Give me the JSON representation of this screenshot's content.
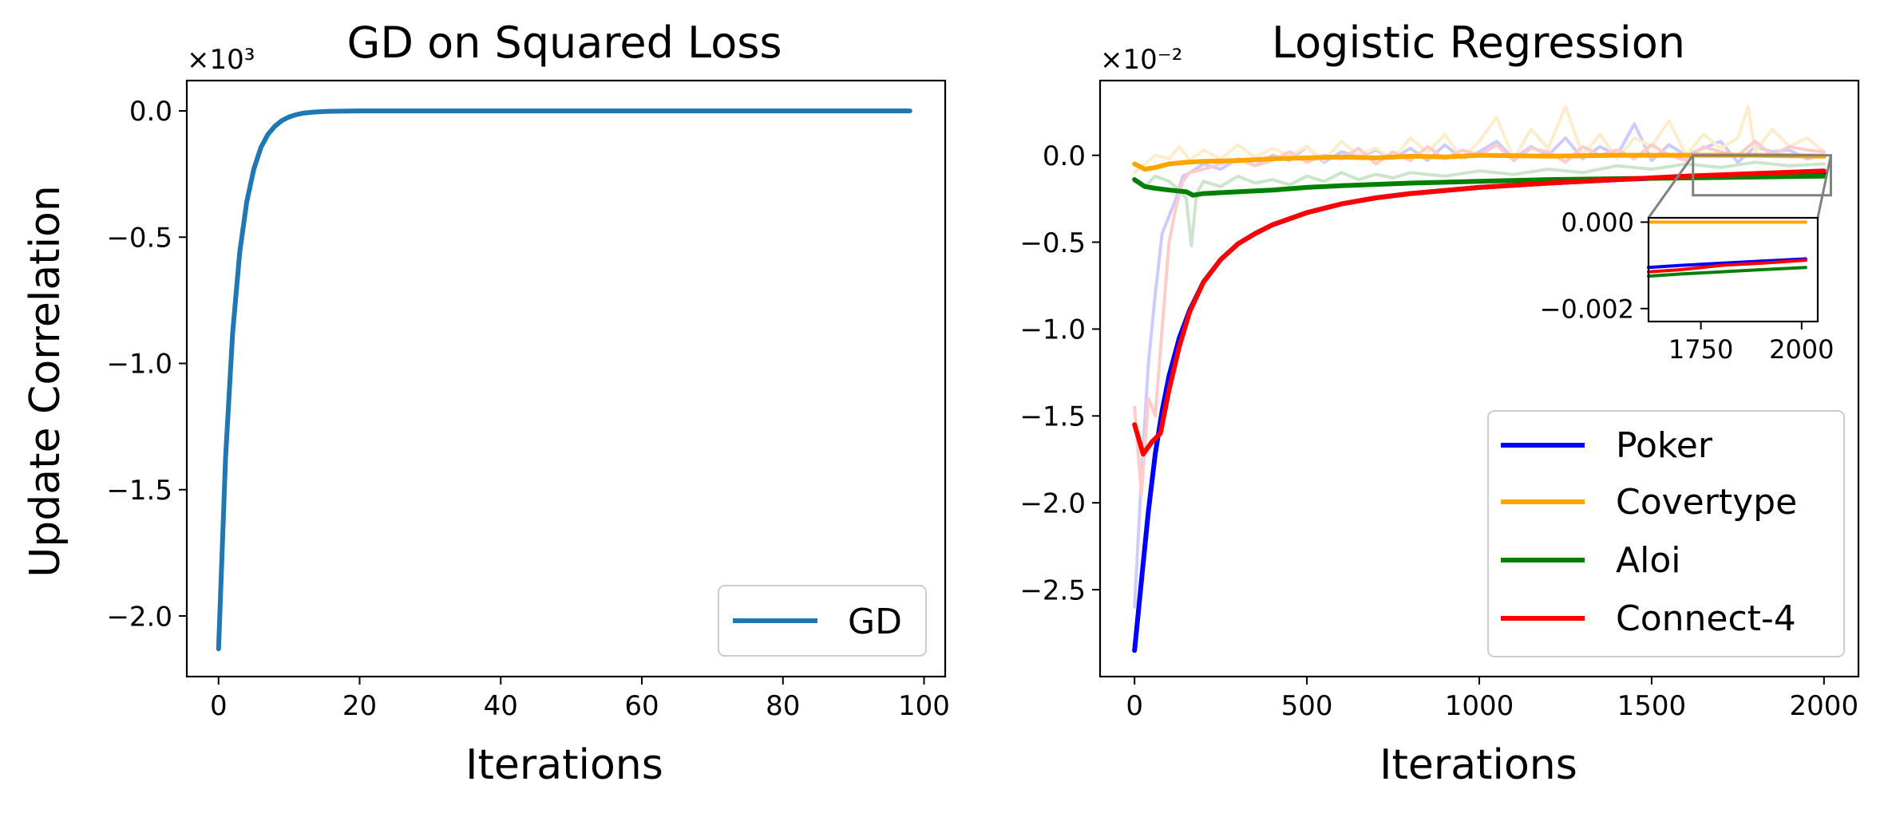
{
  "chart_data": [
    {
      "type": "line",
      "title": "GD on Squared Loss",
      "xlabel": "Iterations",
      "ylabel": "Update Correlation",
      "multiplier_label": "×10³",
      "xlim": [
        -4.5,
        103
      ],
      "ylim": [
        -2.24,
        0.12
      ],
      "xticks": [
        0,
        20,
        40,
        60,
        80,
        100
      ],
      "xtick_labels": [
        "0",
        "20",
        "40",
        "60",
        "80",
        "100"
      ],
      "yticks": [
        0.0,
        -0.5,
        -1.0,
        -1.5,
        -2.0
      ],
      "ytick_labels": [
        "0.0",
        "−0.5",
        "−1.0",
        "−1.5",
        "−2.0"
      ],
      "legend_position": "lower right",
      "series": [
        {
          "name": "GD",
          "color": "#1f77b4",
          "x": [
            0,
            1,
            2,
            3,
            4,
            5,
            6,
            7,
            8,
            9,
            10,
            11,
            12,
            13,
            14,
            15,
            16,
            18,
            20,
            25,
            30,
            40,
            50,
            60,
            70,
            80,
            90,
            98
          ],
          "y": [
            -2.13,
            -1.37,
            -0.88,
            -0.56,
            -0.36,
            -0.23,
            -0.145,
            -0.093,
            -0.06,
            -0.038,
            -0.024,
            -0.015,
            -0.009,
            -0.006,
            -0.004,
            -0.0025,
            -0.0015,
            -0.0006,
            -0.0002,
            0,
            0,
            0,
            0,
            0,
            0,
            0,
            0,
            0
          ]
        }
      ]
    },
    {
      "type": "line",
      "title": "Logistic Regression",
      "xlabel": "Iterations",
      "ylabel": "",
      "multiplier_label": "×10⁻²",
      "xlim": [
        -100,
        2100
      ],
      "ylim": [
        -3.0,
        0.43
      ],
      "xticks": [
        0,
        500,
        1000,
        1500,
        2000
      ],
      "xtick_labels": [
        "0",
        "500",
        "1000",
        "1500",
        "2000"
      ],
      "yticks": [
        0.0,
        -0.5,
        -1.0,
        -1.5,
        -2.0,
        -2.5
      ],
      "ytick_labels": [
        "0.0",
        "−0.5",
        "−1.0",
        "−1.5",
        "−2.0",
        "−2.5"
      ],
      "legend_position": "lower right",
      "series": [
        {
          "name": "Poker",
          "color": "#0000ff",
          "x": [
            0,
            20,
            40,
            60,
            80,
            100,
            130,
            160,
            200,
            250,
            300,
            350,
            400,
            500,
            600,
            700,
            800,
            1000,
            1200,
            1400,
            1600,
            1800,
            2000
          ],
          "y": [
            -2.85,
            -2.45,
            -2.05,
            -1.72,
            -1.47,
            -1.27,
            -1.05,
            -0.89,
            -0.73,
            -0.6,
            -0.51,
            -0.45,
            -0.4,
            -0.33,
            -0.28,
            -0.245,
            -0.22,
            -0.185,
            -0.16,
            -0.14,
            -0.125,
            -0.11,
            -0.1
          ]
        },
        {
          "name": "Covertype",
          "color": "#ffa500",
          "x": [
            0,
            30,
            60,
            100,
            150,
            200,
            300,
            400,
            500,
            600,
            700,
            800,
            900,
            1000,
            1200,
            1400,
            1600,
            1800,
            2000
          ],
          "y": [
            -0.05,
            -0.08,
            -0.07,
            -0.05,
            -0.04,
            -0.035,
            -0.03,
            -0.02,
            -0.015,
            -0.01,
            -0.015,
            -0.005,
            -0.01,
            0.0,
            -0.005,
            0.0,
            0.0,
            0.0,
            -0.005
          ]
        },
        {
          "name": "Aloi",
          "color": "#008000",
          "x": [
            0,
            30,
            60,
            100,
            150,
            170,
            200,
            300,
            400,
            500,
            600,
            800,
            1000,
            1200,
            1400,
            1600,
            1800,
            2000
          ],
          "y": [
            -0.14,
            -0.18,
            -0.19,
            -0.2,
            -0.21,
            -0.23,
            -0.22,
            -0.21,
            -0.2,
            -0.185,
            -0.175,
            -0.16,
            -0.15,
            -0.14,
            -0.135,
            -0.13,
            -0.125,
            -0.12
          ]
        },
        {
          "name": "Connect-4",
          "color": "#ff0000",
          "x": [
            0,
            25,
            50,
            75,
            100,
            130,
            160,
            200,
            250,
            300,
            350,
            400,
            500,
            600,
            700,
            800,
            1000,
            1200,
            1400,
            1600,
            1800,
            2000
          ],
          "y": [
            -1.55,
            -1.72,
            -1.65,
            -1.6,
            -1.35,
            -1.1,
            -0.9,
            -0.73,
            -0.6,
            -0.51,
            -0.45,
            -0.4,
            -0.33,
            -0.28,
            -0.245,
            -0.22,
            -0.185,
            -0.16,
            -0.14,
            -0.12,
            -0.105,
            -0.09
          ]
        }
      ],
      "raw_series": [
        {
          "name": "Poker",
          "color": "#0000ff",
          "x": [
            0,
            20,
            40,
            60,
            80,
            100,
            120,
            140,
            160,
            200,
            250,
            300,
            350,
            400,
            450,
            500,
            550,
            600,
            650,
            700,
            750,
            800,
            850,
            900,
            950,
            1000,
            1050,
            1100,
            1150,
            1200,
            1250,
            1300,
            1350,
            1400,
            1450,
            1500,
            1550,
            1600,
            1650,
            1700,
            1750,
            1800,
            1850,
            1900,
            1950,
            2000
          ],
          "y": [
            -2.6,
            -1.85,
            -1.2,
            -0.8,
            -0.45,
            -0.35,
            -0.25,
            -0.12,
            -0.1,
            -0.05,
            -0.08,
            -0.02,
            -0.06,
            0.0,
            -0.03,
            0.05,
            -0.04,
            0.02,
            -0.01,
            0.03,
            -0.02,
            0.04,
            -0.03,
            0.06,
            -0.02,
            0.02,
            0.08,
            -0.02,
            0.05,
            0.0,
            0.1,
            -0.02,
            0.05,
            0.0,
            0.18,
            -0.03,
            0.06,
            0.0,
            0.04,
            0.08,
            -0.04,
            0.05,
            0.02,
            0.03,
            -0.02,
            0.0
          ]
        },
        {
          "name": "Covertype",
          "color": "#ffa500",
          "x": [
            0,
            30,
            60,
            100,
            130,
            160,
            200,
            250,
            300,
            350,
            400,
            450,
            500,
            550,
            600,
            650,
            700,
            750,
            800,
            850,
            900,
            950,
            1000,
            1050,
            1100,
            1150,
            1200,
            1250,
            1300,
            1350,
            1400,
            1450,
            1500,
            1550,
            1600,
            1650,
            1700,
            1750,
            1780,
            1800,
            1850,
            1900,
            1950,
            2000
          ],
          "y": [
            -0.1,
            -0.05,
            0.0,
            -0.02,
            0.05,
            -0.03,
            0.03,
            -0.02,
            0.06,
            -0.01,
            0.04,
            0.0,
            0.05,
            -0.03,
            0.08,
            0.0,
            0.04,
            -0.02,
            0.1,
            0.02,
            0.12,
            -0.02,
            0.08,
            0.22,
            -0.02,
            0.15,
            0.04,
            0.28,
            0.0,
            0.12,
            -0.02,
            0.1,
            0.05,
            0.2,
            0.0,
            0.12,
            0.04,
            0.1,
            0.28,
            0.02,
            0.15,
            0.05,
            0.1,
            0.02
          ]
        },
        {
          "name": "Aloi",
          "color": "#008000",
          "x": [
            0,
            30,
            60,
            100,
            130,
            150,
            165,
            180,
            200,
            250,
            300,
            350,
            400,
            450,
            500,
            550,
            600,
            650,
            700,
            750,
            800,
            900,
            1000,
            1100,
            1200,
            1300,
            1400,
            1500,
            1600,
            1700,
            1800,
            1900,
            2000
          ],
          "y": [
            -0.15,
            -0.18,
            -0.12,
            -0.15,
            -0.2,
            -0.25,
            -0.52,
            -0.22,
            -0.15,
            -0.18,
            -0.12,
            -0.16,
            -0.14,
            -0.17,
            -0.12,
            -0.15,
            -0.1,
            -0.14,
            -0.11,
            -0.13,
            -0.1,
            -0.12,
            -0.09,
            -0.11,
            -0.08,
            -0.1,
            -0.06,
            -0.08,
            -0.05,
            -0.07,
            -0.04,
            -0.06,
            -0.05
          ]
        },
        {
          "name": "Connect-4",
          "color": "#ff0000",
          "x": [
            0,
            20,
            40,
            60,
            80,
            100,
            120,
            140,
            160,
            200,
            250,
            300,
            350,
            400,
            450,
            500,
            550,
            600,
            650,
            700,
            750,
            800,
            850,
            900,
            950,
            1000,
            1050,
            1100,
            1150,
            1200,
            1250,
            1300,
            1350,
            1400,
            1450,
            1500,
            1550,
            1600,
            1650,
            1700,
            1750,
            1800,
            1850,
            1900,
            1950,
            2000
          ],
          "y": [
            -1.45,
            -1.95,
            -1.4,
            -1.5,
            -1.0,
            -0.5,
            -0.3,
            -0.15,
            -0.1,
            -0.08,
            -0.05,
            -0.02,
            -0.06,
            -0.03,
            0.02,
            -0.04,
            0.0,
            -0.02,
            0.04,
            -0.05,
            0.02,
            -0.03,
            0.05,
            -0.02,
            0.03,
            0.0,
            0.06,
            -0.03,
            0.04,
            0.02,
            -0.04,
            0.05,
            0.0,
            0.03,
            -0.02,
            0.06,
            0.0,
            -0.03,
            0.05,
            0.02,
            0.0,
            0.08,
            0.0,
            0.05,
            0.03,
            0.02
          ]
        }
      ],
      "inset": {
        "xlim": [
          1620,
          2040
        ],
        "ylim": [
          -0.0023,
          0.0001
        ],
        "xticks": [
          1750,
          2000
        ],
        "xtick_labels": [
          "1750",
          "2000"
        ],
        "yticks": [
          0.0,
          -0.002
        ],
        "ytick_labels": [
          "0.000",
          "−0.002"
        ],
        "zoom_box_x": [
          1620,
          2020
        ],
        "zoom_box_y": [
          -0.23,
          0.0
        ],
        "series": [
          {
            "name": "Covertype",
            "color": "#ffa500",
            "x": [
              1620,
              1700,
              1800,
              1900,
              2010
            ],
            "y": [
              0.0,
              0.0,
              0.0,
              0.0,
              0.0
            ]
          },
          {
            "name": "Poker",
            "color": "#0000ff",
            "x": [
              1620,
              1700,
              1800,
              1900,
              2010
            ],
            "y": [
              -0.00105,
              -0.001,
              -0.00095,
              -0.0009,
              -0.00085
            ]
          },
          {
            "name": "Connect-4",
            "color": "#ff0000",
            "x": [
              1620,
              1700,
              1800,
              1900,
              2010
            ],
            "y": [
              -0.00115,
              -0.0011,
              -0.001,
              -0.00095,
              -0.00088
            ]
          },
          {
            "name": "Aloi",
            "color": "#008000",
            "x": [
              1620,
              1700,
              1800,
              1900,
              2010
            ],
            "y": [
              -0.00125,
              -0.0012,
              -0.00115,
              -0.0011,
              -0.00105
            ]
          }
        ]
      }
    }
  ]
}
